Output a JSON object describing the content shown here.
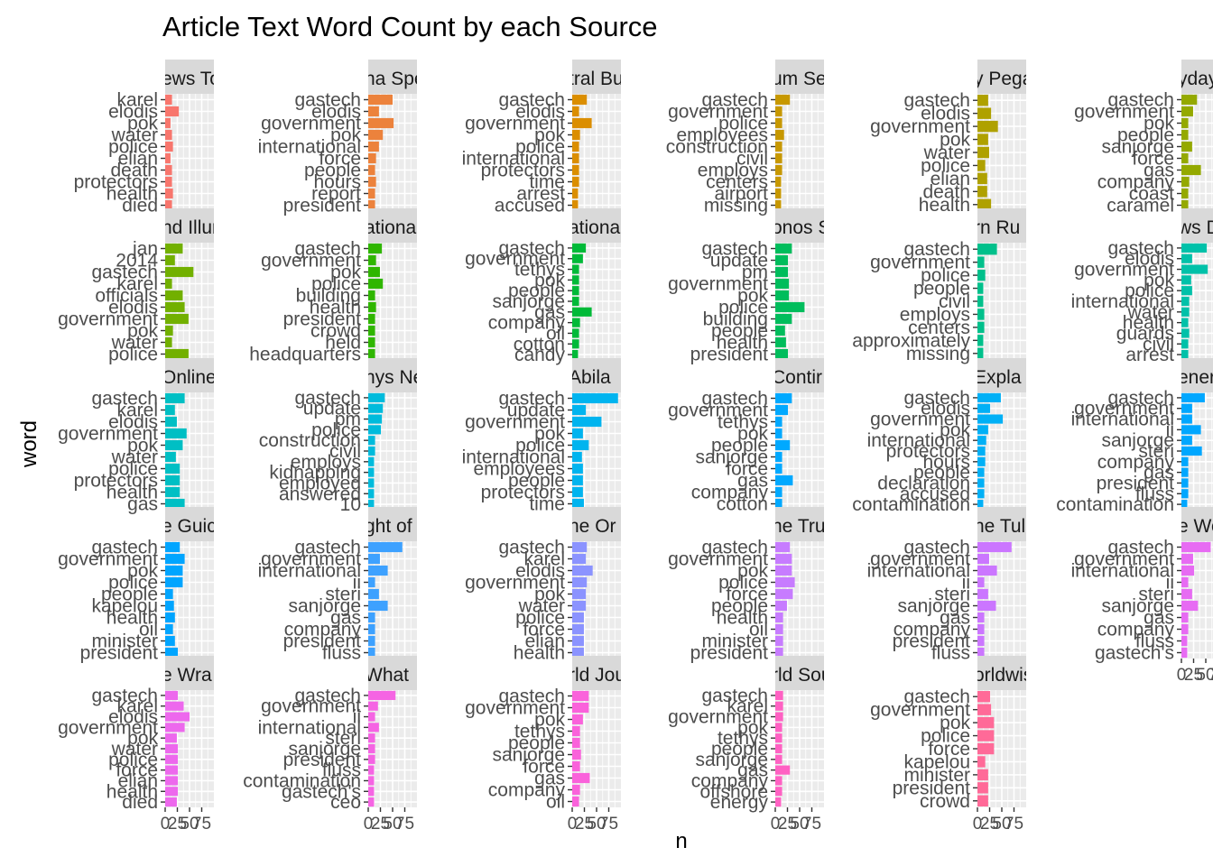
{
  "chart_data": {
    "type": "bar",
    "title": "Article Text Word Count by each Source",
    "xlabel": "n",
    "ylabel": "word",
    "xlim": [
      0,
      100
    ],
    "x_ticks": [
      0,
      25,
      50,
      75
    ],
    "x_tick_labels": [
      "0",
      "25",
      "50",
      "75"
    ],
    "legend": "none",
    "grid": true,
    "panels": [
      {
        "strip": "ews To",
        "color": "#F8766D",
        "words": [
          "karel",
          "elodis",
          "pok",
          "water",
          "police",
          "elian",
          "death",
          "protectors",
          "health",
          "died"
        ],
        "values": [
          14,
          28,
          11,
          14,
          16,
          11,
          14,
          14,
          16,
          14
        ]
      },
      {
        "strip": "na Spe",
        "color": "#EC823C",
        "words": [
          "gastech",
          "elodis",
          "government",
          "pok",
          "international",
          "force",
          "people",
          "hours",
          "report",
          "president"
        ],
        "values": [
          50,
          22,
          52,
          30,
          22,
          16,
          14,
          16,
          14,
          14
        ]
      },
      {
        "strip": "tral Bu",
        "color": "#DB8E00",
        "words": [
          "gastech",
          "elodis",
          "government",
          "pok",
          "police",
          "international",
          "protectors",
          "time",
          "arrest",
          "accused"
        ],
        "values": [
          30,
          14,
          40,
          16,
          14,
          14,
          14,
          14,
          12,
          12
        ]
      },
      {
        "strip": "um Se",
        "color": "#C79800",
        "words": [
          "gastech",
          "government",
          "police",
          "employees",
          "construction",
          "civil",
          "employs",
          "centers",
          "airport",
          "missing"
        ],
        "values": [
          30,
          14,
          14,
          18,
          14,
          14,
          14,
          12,
          12,
          12
        ]
      },
      {
        "strip": "y Pega",
        "color": "#AFA100",
        "words": [
          "gastech",
          "elodis",
          "government",
          "pok",
          "water",
          "police",
          "elian",
          "death",
          "health"
        ],
        "values": [
          22,
          28,
          42,
          22,
          24,
          16,
          20,
          20,
          28
        ]
      },
      {
        "strip": "yday N",
        "color": "#94A900",
        "words": [
          "gastech",
          "government",
          "pok",
          "people",
          "sanjorge",
          "force",
          "gas",
          "company",
          "coast",
          "caramel"
        ],
        "values": [
          32,
          24,
          14,
          14,
          22,
          14,
          40,
          16,
          14,
          14
        ]
      },
      {
        "strip": "nd Illur",
        "color": "#72B000",
        "words": [
          "jan",
          "2014",
          "gastech",
          "karel",
          "officials",
          "elodis",
          "government",
          "pok",
          "water",
          "police"
        ],
        "values": [
          36,
          20,
          58,
          14,
          36,
          40,
          48,
          16,
          14,
          48
        ]
      },
      {
        "strip": "ational",
        "color": "#2FB600",
        "words": [
          "gastech",
          "government",
          "pok",
          "police",
          "building",
          "health",
          "president",
          "crowd",
          "held",
          "headquarters"
        ],
        "values": [
          28,
          16,
          24,
          30,
          14,
          16,
          14,
          14,
          14,
          14
        ]
      },
      {
        "strip": "ational",
        "color": "#00BA38",
        "words": [
          "gastech",
          "government",
          "tethys",
          "pok",
          "people",
          "sanjorge",
          "gas",
          "company",
          "oil",
          "cotton",
          "candy"
        ],
        "values": [
          28,
          22,
          14,
          14,
          14,
          14,
          40,
          16,
          14,
          14,
          12
        ]
      },
      {
        "strip": "onos S",
        "color": "#00BD5C",
        "words": [
          "gastech",
          "update",
          "pm",
          "government",
          "pok",
          "police",
          "building",
          "people",
          "health",
          "president"
        ],
        "values": [
          34,
          26,
          26,
          28,
          28,
          60,
          34,
          20,
          22,
          26
        ]
      },
      {
        "strip": "rn Ru",
        "color": "#00C08B",
        "words": [
          "gastech",
          "government",
          "police",
          "people",
          "civil",
          "employs",
          "centers",
          "approximately",
          "missing"
        ],
        "values": [
          40,
          14,
          16,
          12,
          12,
          14,
          14,
          12,
          12
        ]
      },
      {
        "strip": "ws De",
        "color": "#00C1A9",
        "words": [
          "gastech",
          "elodis",
          "government",
          "pok",
          "police",
          "international",
          "water",
          "health",
          "guards",
          "civil",
          "arrest"
        ],
        "values": [
          52,
          22,
          54,
          20,
          22,
          16,
          16,
          14,
          16,
          14,
          14
        ]
      },
      {
        "strip": "Online",
        "color": "#00BFC4",
        "words": [
          "gastech",
          "karel",
          "elodis",
          "government",
          "pok",
          "water",
          "police",
          "protectors",
          "health",
          "gas"
        ],
        "values": [
          40,
          20,
          24,
          44,
          36,
          22,
          30,
          30,
          30,
          40
        ]
      },
      {
        "strip": "nys Ne",
        "color": "#00BBDC",
        "words": [
          "gastech",
          "update",
          "pm",
          "police",
          "construction",
          "civil",
          "employs",
          "kidnapping",
          "employed",
          "answered",
          "10"
        ],
        "values": [
          34,
          30,
          28,
          26,
          14,
          14,
          12,
          12,
          12,
          12,
          12
        ]
      },
      {
        "strip": "Abila",
        "color": "#00B4EF",
        "words": [
          "gastech",
          "update",
          "government",
          "pok",
          "police",
          "international",
          "employees",
          "people",
          "protectors",
          "time"
        ],
        "values": [
          94,
          28,
          60,
          22,
          34,
          20,
          22,
          22,
          22,
          24
        ]
      },
      {
        "strip": "Contir",
        "color": "#00A9FF",
        "words": [
          "gastech",
          "government",
          "tethys",
          "pok",
          "people",
          "sanjorge",
          "force",
          "gas",
          "company",
          "cotton"
        ],
        "values": [
          34,
          26,
          14,
          14,
          30,
          14,
          14,
          36,
          14,
          14
        ]
      },
      {
        "strip": "Expla",
        "color": "#00B0F6",
        "words": [
          "gastech",
          "elodis",
          "government",
          "pok",
          "international",
          "protectors",
          "hours",
          "people",
          "declaration",
          "accused",
          "contamination"
        ],
        "values": [
          48,
          26,
          52,
          22,
          18,
          16,
          16,
          14,
          14,
          14,
          12
        ]
      },
      {
        "strip": "enera",
        "color": "#00A7FF",
        "words": [
          "gastech",
          "government",
          "international",
          "ii",
          "sanjorge",
          "steri",
          "company",
          "gas",
          "president",
          "fluss",
          "contamination"
        ],
        "values": [
          48,
          22,
          22,
          40,
          22,
          42,
          14,
          14,
          14,
          14,
          12
        ]
      },
      {
        "strip": "e Guic",
        "color": "#00A5FF",
        "words": [
          "gastech",
          "government",
          "pok",
          "police",
          "people",
          "kapelou",
          "health",
          "oil",
          "minister",
          "president"
        ],
        "values": [
          30,
          40,
          36,
          36,
          16,
          18,
          20,
          16,
          20,
          26
        ]
      },
      {
        "strip": "ght of",
        "color": "#3DA1FF",
        "words": [
          "gastech",
          "government",
          "international",
          "ii",
          "steri",
          "sanjorge",
          "gas",
          "company",
          "president",
          "fluss"
        ],
        "values": [
          70,
          24,
          40,
          14,
          22,
          40,
          14,
          14,
          14,
          14
        ]
      },
      {
        "strip": "he Or",
        "color": "#8B93FF",
        "words": [
          "gastech",
          "karel",
          "elodis",
          "government",
          "pok",
          "water",
          "police",
          "force",
          "elian",
          "health"
        ],
        "values": [
          30,
          28,
          42,
          30,
          28,
          28,
          24,
          24,
          24,
          24
        ]
      },
      {
        "strip": "he Tru",
        "color": "#C77CFF",
        "words": [
          "gastech",
          "government",
          "pok",
          "police",
          "force",
          "people",
          "health",
          "oil",
          "minister",
          "president"
        ],
        "values": [
          30,
          34,
          34,
          40,
          36,
          24,
          16,
          16,
          16,
          16
        ]
      },
      {
        "strip": "he Tul",
        "color": "#CB76FF",
        "words": [
          "gastech",
          "government",
          "international",
          "ii",
          "steri",
          "sanjorge",
          "gas",
          "company",
          "president",
          "fluss"
        ],
        "values": [
          70,
          24,
          40,
          14,
          22,
          38,
          14,
          14,
          14,
          14
        ]
      },
      {
        "strip": "e Wor",
        "color": "#E76BF3",
        "words": [
          "gastech",
          "government",
          "international",
          "ii",
          "steri",
          "sanjorge",
          "gas",
          "company",
          "fluss",
          "gastech's"
        ],
        "values": [
          60,
          24,
          26,
          14,
          22,
          34,
          14,
          14,
          12,
          12
        ]
      },
      {
        "strip": "e Wra",
        "color": "#ED68ED",
        "words": [
          "gastech",
          "karel",
          "elodis",
          "government",
          "pok",
          "water",
          "police",
          "force",
          "elian",
          "health",
          "died"
        ],
        "values": [
          26,
          38,
          50,
          40,
          24,
          26,
          26,
          26,
          26,
          26,
          24
        ]
      },
      {
        "strip": "What",
        "color": "#F564E3",
        "words": [
          "gastech",
          "government",
          "ii",
          "international",
          "steri",
          "sanjorge",
          "president",
          "fluss",
          "contamination",
          "gastech's",
          "ceo"
        ],
        "values": [
          56,
          20,
          14,
          22,
          14,
          14,
          14,
          12,
          12,
          12,
          12
        ]
      },
      {
        "strip": "rld Jou",
        "color": "#FA62DB",
        "words": [
          "gastech",
          "government",
          "pok",
          "tethys",
          "people",
          "sanjorge",
          "force",
          "gas",
          "company",
          "oil"
        ],
        "values": [
          34,
          34,
          22,
          16,
          16,
          18,
          16,
          36,
          16,
          14
        ]
      },
      {
        "strip": "rld Sou",
        "color": "#FF61C3",
        "words": [
          "gastech",
          "karel",
          "government",
          "pok",
          "tethys",
          "people",
          "sanjorge",
          "gas",
          "company",
          "offshore",
          "energy"
        ],
        "values": [
          16,
          16,
          16,
          14,
          14,
          14,
          14,
          30,
          14,
          14,
          12
        ]
      },
      {
        "strip": "orldwis",
        "color": "#FF6A98",
        "words": [
          "gastech",
          "government",
          "pok",
          "police",
          "force",
          "kapelou",
          "minister",
          "president",
          "crowd"
        ],
        "values": [
          26,
          28,
          34,
          34,
          34,
          16,
          22,
          22,
          22
        ]
      }
    ]
  }
}
